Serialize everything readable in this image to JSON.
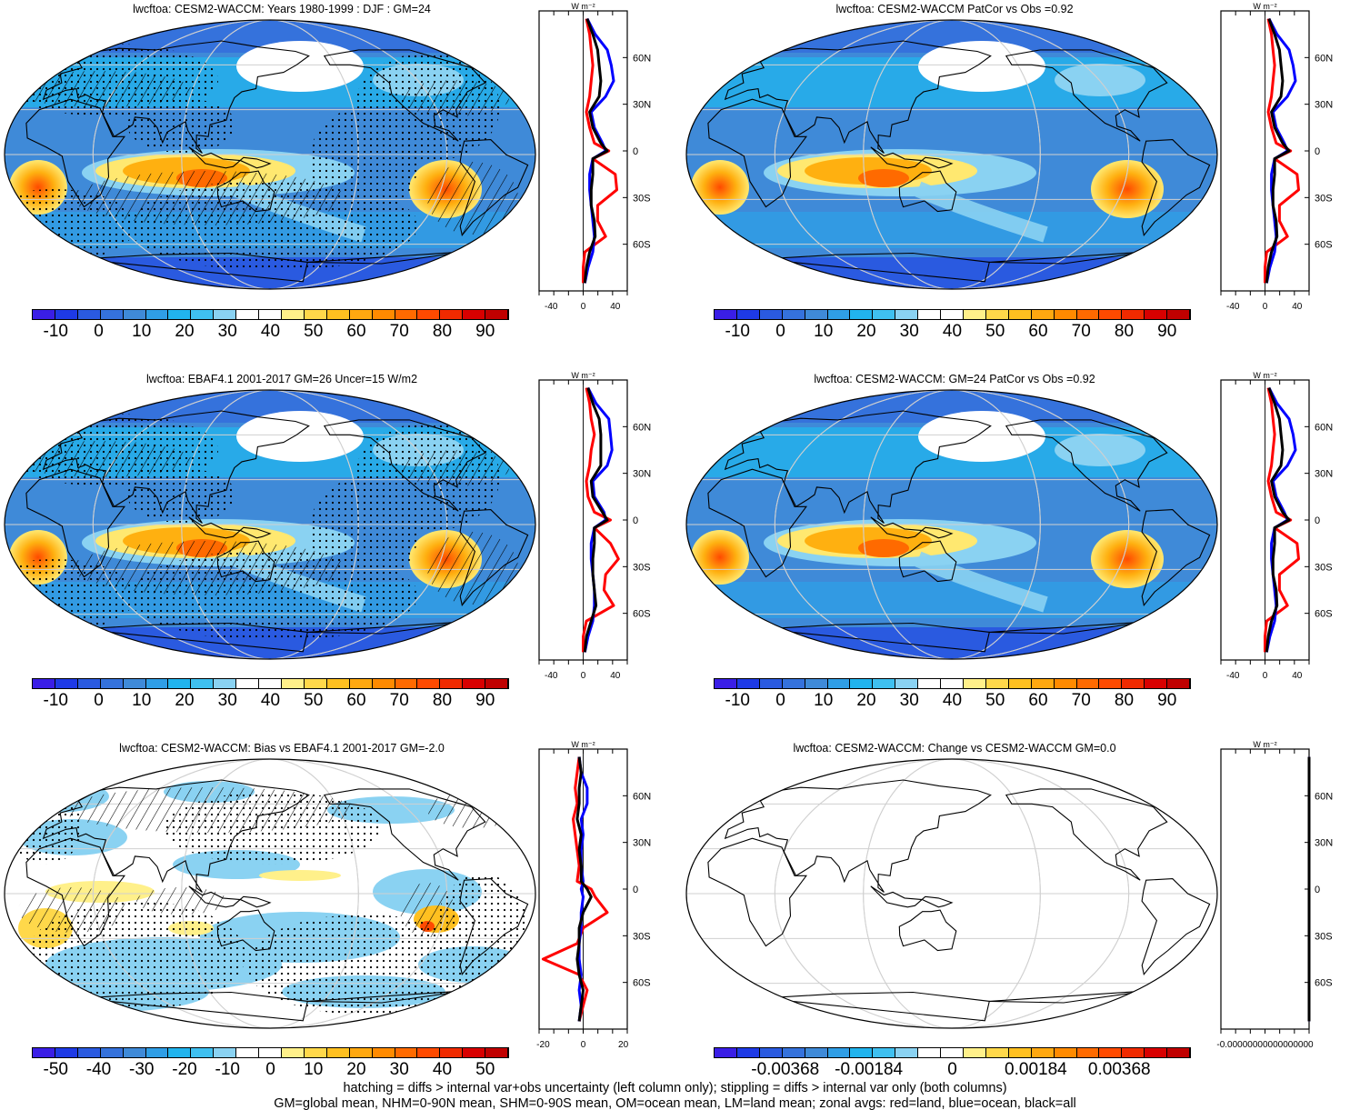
{
  "colors": {
    "land": "#ff0000",
    "ocean": "#0000ff",
    "all": "#000000",
    "palette": [
      "#3a1ee6",
      "#1e3ae6",
      "#2a5ae0",
      "#3572dc",
      "#3f8ad8",
      "#2f9ee6",
      "#21b4ee",
      "#3fc0f0",
      "#8ad2f2",
      "#ffffff",
      "#ffffff",
      "#fff08a",
      "#ffd84a",
      "#ffc020",
      "#ffa810",
      "#ff8a00",
      "#ff6a00",
      "#ff4a00",
      "#f02a00",
      "#d80000",
      "#c00000"
    ]
  },
  "panels": [
    {
      "title": "lwcftoa: CESM2-WACCM: Years 1980-1999 : DJF : GM=24",
      "colorbar_labels": [
        "-10",
        "0",
        "10",
        "20",
        "30",
        "40",
        "50",
        "60",
        "70",
        "80",
        "90"
      ],
      "zonal_x_ticks": [
        "-40",
        "0",
        "40"
      ],
      "zonal_y_ticks": [
        "60N",
        "30N",
        "0",
        "30S",
        "60S"
      ],
      "zonal_units": "W m⁻²"
    },
    {
      "title": "lwcftoa: CESM2-WACCM PatCor vs Obs =0.92",
      "colorbar_labels": [
        "-10",
        "0",
        "10",
        "20",
        "30",
        "40",
        "50",
        "60",
        "70",
        "80",
        "90"
      ],
      "zonal_x_ticks": [
        "-40",
        "0",
        "40"
      ],
      "zonal_y_ticks": [
        "60N",
        "30N",
        "0",
        "30S",
        "60S"
      ],
      "zonal_units": "W m⁻²"
    },
    {
      "title": "lwcftoa: EBAF4.1 2001-2017 GM=26 Uncer=15 W/m2",
      "colorbar_labels": [
        "-10",
        "0",
        "10",
        "20",
        "30",
        "40",
        "50",
        "60",
        "70",
        "80",
        "90"
      ],
      "zonal_x_ticks": [
        "-40",
        "0",
        "40"
      ],
      "zonal_y_ticks": [
        "60N",
        "30N",
        "0",
        "30S",
        "60S"
      ],
      "zonal_units": "W m⁻²"
    },
    {
      "title": "lwcftoa: CESM2-WACCM: GM=24 PatCor vs Obs =0.92",
      "colorbar_labels": [
        "-10",
        "0",
        "10",
        "20",
        "30",
        "40",
        "50",
        "60",
        "70",
        "80",
        "90"
      ],
      "zonal_x_ticks": [
        "-40",
        "0",
        "40"
      ],
      "zonal_y_ticks": [
        "60N",
        "30N",
        "0",
        "30S",
        "60S"
      ],
      "zonal_units": "W m⁻²"
    },
    {
      "title": "lwcftoa: CESM2-WACCM: Bias vs EBAF4.1 2001-2017 GM=-2.0",
      "colorbar_labels": [
        "-50",
        "-40",
        "-30",
        "-20",
        "-10",
        "0",
        "10",
        "20",
        "30",
        "40",
        "50"
      ],
      "zonal_x_ticks": [
        "-20",
        "0",
        "20"
      ],
      "zonal_y_ticks": [
        "60N",
        "30N",
        "0",
        "30S",
        "60S"
      ],
      "zonal_units": "W m⁻²"
    },
    {
      "title": "lwcftoa: CESM2-WACCM: Change vs CESM2-WACCM GM=0.0",
      "colorbar_labels": [
        "-0.00368",
        "-0.00184",
        "0",
        "0.00184",
        "0.00368"
      ],
      "zonal_x_ticks": [
        "-0.00000000000000000"
      ],
      "zonal_y_ticks": [
        "60N",
        "30N",
        "0",
        "30S",
        "60S"
      ],
      "zonal_units": "W m⁻²"
    }
  ],
  "chart_data": {
    "type": "map",
    "zonal_profiles": {
      "lat": [
        85,
        75,
        65,
        55,
        45,
        35,
        25,
        15,
        5,
        0,
        -5,
        -15,
        -25,
        -35,
        -45,
        -55,
        -65,
        -75,
        -85
      ],
      "panel_1": {
        "all": [
          5,
          12,
          18,
          20,
          22,
          20,
          8,
          12,
          22,
          30,
          12,
          12,
          10,
          10,
          14,
          15,
          8,
          4,
          2
        ],
        "ocean": [
          5,
          15,
          30,
          35,
          38,
          28,
          10,
          14,
          24,
          28,
          12,
          8,
          8,
          10,
          12,
          14,
          12,
          6,
          2
        ],
        "land": [
          4,
          8,
          10,
          12,
          10,
          8,
          4,
          8,
          14,
          32,
          12,
          40,
          42,
          18,
          18,
          28,
          2,
          0,
          0
        ]
      },
      "panel_2": {
        "all": [
          5,
          12,
          18,
          20,
          22,
          20,
          8,
          12,
          22,
          30,
          12,
          12,
          10,
          10,
          14,
          15,
          8,
          4,
          2
        ],
        "ocean": [
          5,
          15,
          30,
          35,
          38,
          28,
          10,
          14,
          24,
          28,
          12,
          8,
          8,
          10,
          12,
          14,
          12,
          6,
          2
        ],
        "land": [
          4,
          8,
          10,
          12,
          10,
          8,
          4,
          8,
          14,
          32,
          12,
          40,
          42,
          18,
          18,
          28,
          2,
          0,
          0
        ]
      },
      "panel_3": {
        "all": [
          6,
          12,
          20,
          22,
          22,
          22,
          10,
          12,
          24,
          30,
          14,
          14,
          12,
          12,
          14,
          16,
          10,
          4,
          2
        ],
        "ocean": [
          6,
          16,
          32,
          34,
          36,
          30,
          12,
          14,
          26,
          28,
          14,
          10,
          10,
          12,
          14,
          14,
          12,
          6,
          2
        ],
        "land": [
          4,
          8,
          10,
          14,
          10,
          8,
          4,
          6,
          14,
          34,
          14,
          34,
          44,
          28,
          26,
          38,
          4,
          0,
          0
        ]
      },
      "panel_4": {
        "all": [
          5,
          12,
          18,
          20,
          22,
          20,
          8,
          12,
          22,
          30,
          12,
          12,
          10,
          10,
          14,
          15,
          8,
          4,
          2
        ],
        "ocean": [
          5,
          15,
          30,
          35,
          38,
          28,
          10,
          14,
          24,
          28,
          12,
          8,
          8,
          10,
          12,
          14,
          12,
          6,
          2
        ],
        "land": [
          4,
          8,
          10,
          12,
          10,
          8,
          4,
          8,
          14,
          32,
          12,
          40,
          42,
          18,
          18,
          28,
          2,
          0,
          0
        ]
      },
      "panel_5": {
        "all": [
          -2,
          -1,
          -2,
          -2,
          -3,
          -1,
          -2,
          -1,
          -1,
          2,
          4,
          0,
          -2,
          -2,
          -3,
          -2,
          0,
          -1,
          -2
        ],
        "ocean": [
          -2,
          -1,
          2,
          2,
          -1,
          0,
          -1,
          -1,
          0,
          -1,
          0,
          -1,
          -1,
          -2,
          -2,
          -1,
          -2,
          -1,
          -2
        ],
        "land": [
          -2,
          -3,
          -4,
          -3,
          -5,
          -4,
          -3,
          -2,
          -3,
          4,
          6,
          12,
          0,
          -3,
          -20,
          -2,
          2,
          0,
          -2
        ]
      },
      "panel_6": {
        "all": [
          0,
          0,
          0,
          0,
          0,
          0,
          0,
          0,
          0,
          0,
          0,
          0,
          0,
          0,
          0,
          0,
          0,
          0,
          0
        ],
        "ocean": [
          0,
          0,
          0,
          0,
          0,
          0,
          0,
          0,
          0,
          0,
          0,
          0,
          0,
          0,
          0,
          0,
          0,
          0,
          0
        ],
        "land": [
          0,
          0,
          0,
          0,
          0,
          0,
          0,
          0,
          0,
          0,
          0,
          0,
          0,
          0,
          0,
          0,
          0,
          0,
          0
        ]
      }
    }
  },
  "footer": {
    "line1": "hatching = diffs > internal var+obs uncertainty (left column only); stippling = diffs > internal var only (both columns)",
    "line2": "GM=global mean, NHM=0-90N mean, SHM=0-90S mean, OM=ocean mean, LM=land mean; zonal avgs: red=land, blue=ocean, black=all"
  }
}
